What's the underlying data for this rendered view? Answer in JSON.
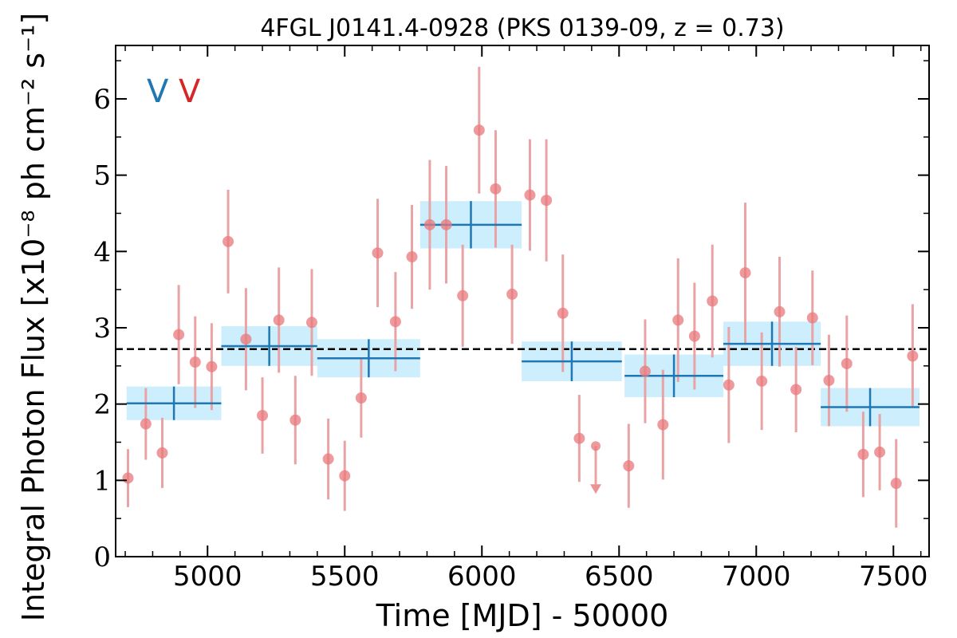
{
  "chart_data": {
    "type": "scatter",
    "title": "4FGL J0141.4-0928 (PKS 0139-09, z = 0.73)",
    "xlabel": "Time [MJD] - 50000",
    "ylabel": "Integral Photon Flux [x10⁻⁸ ph cm⁻² s⁻¹]",
    "xlim": [
      4665,
      7630
    ],
    "ylim": [
      0,
      6.7
    ],
    "xticks": [
      5000,
      5500,
      6000,
      6500,
      7000,
      7500
    ],
    "yticks": [
      0,
      1,
      2,
      3,
      4,
      5,
      6
    ],
    "grid": false,
    "legend": {
      "placement": "top-left",
      "entries": [
        {
          "label": "V",
          "color": "#1f77b4"
        },
        {
          "label": "V",
          "color": "#d62728"
        }
      ]
    },
    "mean_flux": 2.72,
    "colors": {
      "points": "#e8787c",
      "errorbars": "#e9a3a5",
      "bins": "#1f77b4",
      "bin_fill": "#cdeefc",
      "mean_line": "#000000"
    },
    "series": [
      {
        "name": "",
        "type": "points",
        "x": [
          4710,
          4775,
          4835,
          4895,
          4955,
          5015,
          5075,
          5140,
          5200,
          5260,
          5320,
          5380,
          5440,
          5500,
          5560,
          5620,
          5685,
          5745,
          5810,
          5870,
          5930,
          5990,
          6050,
          6110,
          6175,
          6235,
          6295,
          6355,
          6535,
          6595,
          6660,
          6715,
          6775,
          6840,
          6900,
          6960,
          7020,
          7085,
          7145,
          7205,
          7265,
          7330,
          7390,
          7450,
          7510,
          7570
        ],
        "y": [
          1.03,
          1.74,
          1.36,
          2.91,
          2.55,
          2.49,
          4.13,
          2.85,
          1.85,
          3.1,
          1.79,
          3.07,
          1.28,
          1.06,
          2.08,
          3.98,
          3.08,
          3.93,
          4.35,
          4.35,
          3.42,
          5.59,
          4.82,
          3.44,
          4.74,
          4.67,
          3.19,
          1.55,
          1.19,
          2.43,
          1.73,
          3.1,
          2.89,
          3.35,
          2.25,
          3.72,
          2.3,
          3.21,
          2.19,
          3.13,
          2.31,
          2.53,
          1.34,
          1.37,
          0.96,
          2.63
        ],
        "yerr": [
          0.38,
          0.47,
          0.46,
          0.65,
          0.6,
          0.57,
          0.68,
          0.67,
          0.5,
          0.69,
          0.58,
          0.7,
          0.53,
          0.46,
          0.52,
          0.71,
          0.65,
          0.68,
          0.85,
          0.77,
          0.67,
          0.83,
          0.77,
          0.65,
          0.73,
          0.8,
          0.77,
          0.57,
          0.55,
          0.68,
          0.72,
          0.81,
          0.7,
          0.74,
          0.76,
          0.92,
          0.64,
          0.72,
          0.56,
          0.62,
          0.6,
          0.63,
          0.56,
          0.5,
          0.58,
          0.68
        ]
      },
      {
        "name": "",
        "type": "upper_limit",
        "x": [
          6415
        ],
        "y": [
          1.45
        ]
      },
      {
        "name": "",
        "type": "bins",
        "x_start": [
          4705,
          5050,
          5400,
          5775,
          6145,
          6520,
          6880,
          7235
        ],
        "x_end": [
          5050,
          5400,
          5775,
          6145,
          6510,
          6880,
          7235,
          7595
        ],
        "y": [
          2.01,
          2.76,
          2.6,
          4.35,
          2.56,
          2.37,
          2.79,
          1.96
        ],
        "yerr": [
          0.22,
          0.26,
          0.25,
          0.31,
          0.26,
          0.28,
          0.29,
          0.25
        ]
      }
    ]
  }
}
